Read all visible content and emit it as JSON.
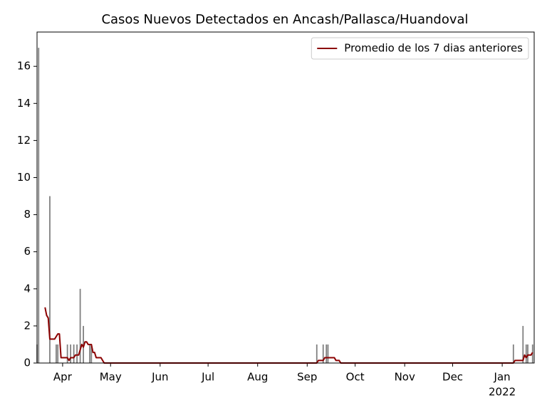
{
  "chart_data": {
    "type": "bar",
    "title": "Casos Nuevos Detectados en Ancash/Pallasca/Huandoval",
    "xlim": [
      "2021-03-16",
      "2022-01-21"
    ],
    "ylim": [
      0,
      17.85
    ],
    "yticks": [
      0,
      2,
      4,
      6,
      8,
      10,
      12,
      14,
      16
    ],
    "xticks": [
      {
        "value": "2021-04-01",
        "label": "Apr"
      },
      {
        "value": "2021-05-01",
        "label": "May"
      },
      {
        "value": "2021-06-01",
        "label": "Jun"
      },
      {
        "value": "2021-07-01",
        "label": "Jul"
      },
      {
        "value": "2021-08-01",
        "label": "Aug"
      },
      {
        "value": "2021-09-01",
        "label": "Sep"
      },
      {
        "value": "2021-10-01",
        "label": "Oct"
      },
      {
        "value": "2021-11-01",
        "label": "Nov"
      },
      {
        "value": "2021-12-01",
        "label": "Dec"
      },
      {
        "value": "2022-01-01",
        "label": "Jan"
      }
    ],
    "x_year_label": "2022",
    "legend": "upper right",
    "series": [
      {
        "type": "bar",
        "color": "#808080",
        "x": [
          "2021-03-16",
          "2021-03-17",
          "2021-03-24",
          "2021-03-28",
          "2021-03-29",
          "2021-04-04",
          "2021-04-06",
          "2021-04-08",
          "2021-04-10",
          "2021-04-12",
          "2021-04-14",
          "2021-04-18",
          "2021-04-19",
          "2021-09-07",
          "2021-09-11",
          "2021-09-13",
          "2021-09-14",
          "2022-01-08",
          "2022-01-14",
          "2022-01-16",
          "2022-01-17",
          "2022-01-20"
        ],
        "values": [
          1,
          17,
          9,
          1,
          1,
          1,
          1,
          1,
          1,
          4,
          2,
          1,
          1,
          1,
          1,
          1,
          1,
          1,
          2,
          1,
          1,
          1
        ]
      },
      {
        "type": "line",
        "name": "Promedio de los 7 dias anteriores",
        "color": "#8b0000",
        "x": [
          "2021-03-21",
          "2021-03-22",
          "2021-03-23",
          "2021-03-24",
          "2021-03-27",
          "2021-03-28",
          "2021-03-29",
          "2021-03-30",
          "2021-03-31",
          "2021-04-04",
          "2021-04-05",
          "2021-04-06",
          "2021-04-08",
          "2021-04-09",
          "2021-04-11",
          "2021-04-12",
          "2021-04-13",
          "2021-04-14",
          "2021-04-15",
          "2021-04-16",
          "2021-04-17",
          "2021-04-19",
          "2021-04-20",
          "2021-04-21",
          "2021-04-22",
          "2021-04-25",
          "2021-04-27",
          "2021-09-07",
          "2021-09-08",
          "2021-09-11",
          "2021-09-12",
          "2021-09-18",
          "2021-09-19",
          "2021-09-21",
          "2021-09-22",
          "2022-01-08",
          "2022-01-09",
          "2022-01-14",
          "2022-01-15",
          "2022-01-16",
          "2022-01-17",
          "2022-01-19",
          "2022-01-20"
        ],
        "values": [
          3.0,
          2.57,
          2.43,
          1.29,
          1.29,
          1.43,
          1.57,
          1.57,
          0.29,
          0.29,
          0.14,
          0.29,
          0.29,
          0.43,
          0.43,
          0.71,
          1.0,
          0.86,
          1.14,
          1.14,
          1.0,
          1.0,
          0.57,
          0.57,
          0.29,
          0.29,
          0,
          0,
          0.14,
          0.14,
          0.29,
          0.29,
          0.14,
          0.14,
          0,
          0,
          0.14,
          0.14,
          0.43,
          0.29,
          0.43,
          0.43,
          0.57
        ]
      }
    ]
  }
}
